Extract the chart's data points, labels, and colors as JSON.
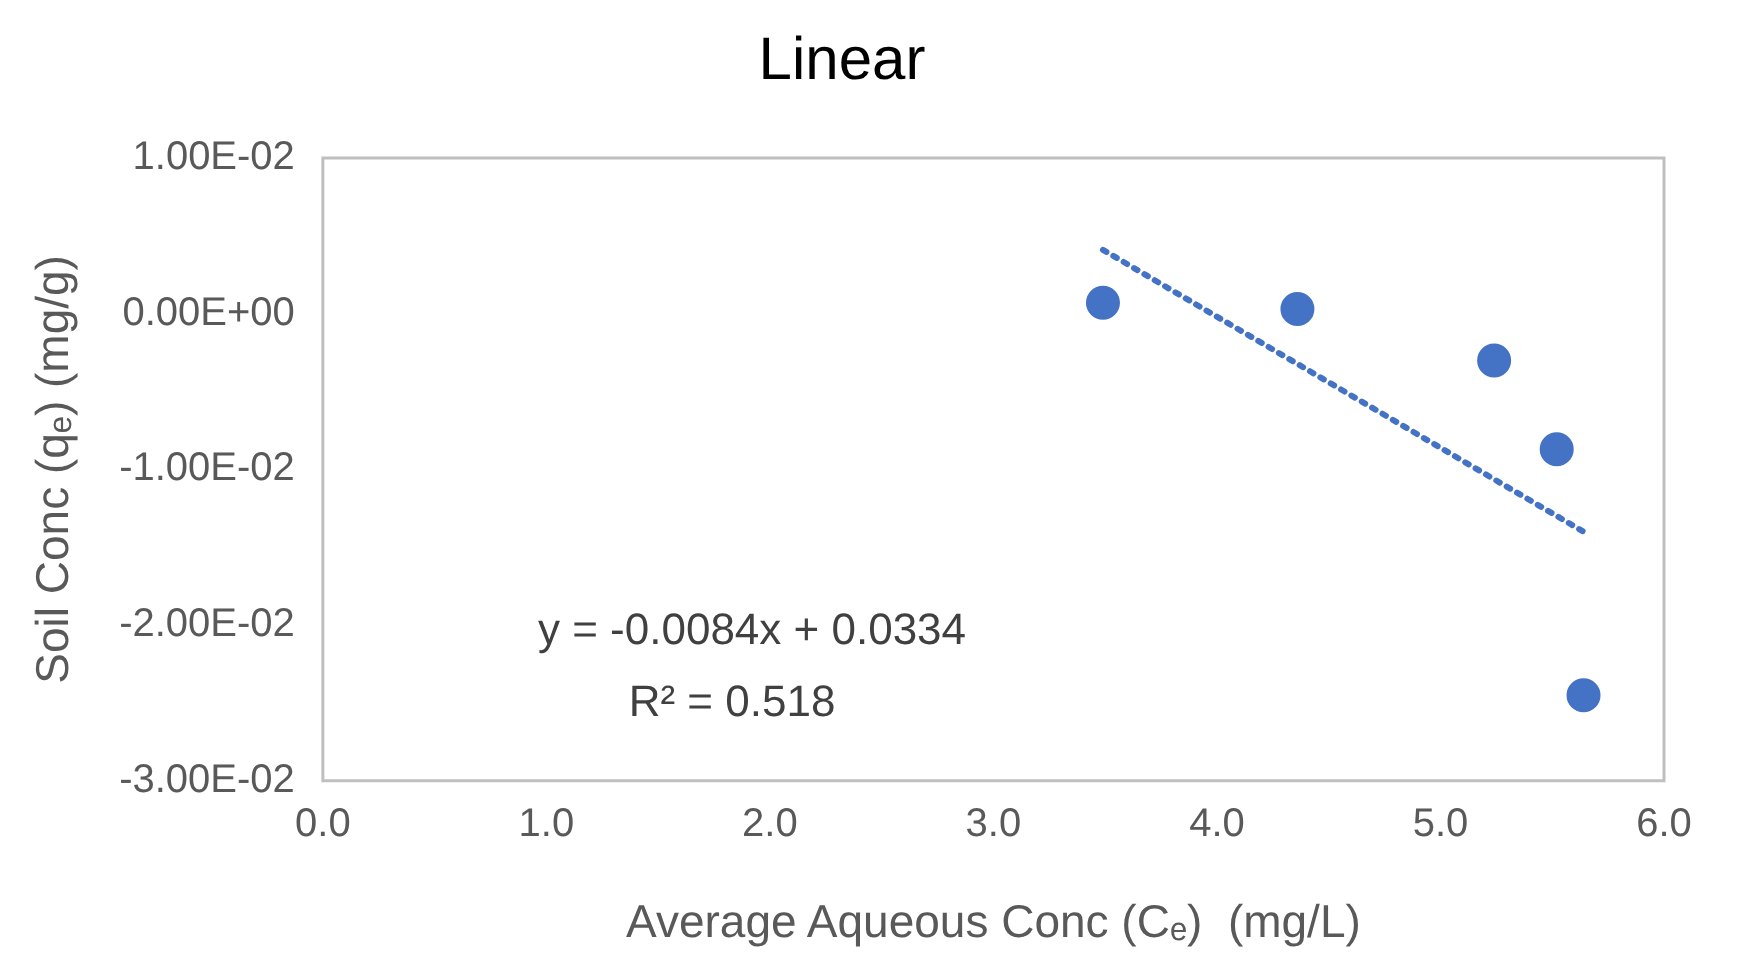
{
  "chart_data": {
    "type": "scatter",
    "title": "Linear",
    "xlabel": "Average Aqueous Conc (Cₑ)  (mg/L)",
    "ylabel": "Soil Conc (qₑ) (mg/g)",
    "series": [
      {
        "type": "scatter",
        "color": "#4472c4",
        "marker": "circle",
        "x": [
          3.49,
          4.36,
          5.24,
          5.52,
          5.64
        ],
        "values": [
          0.0007,
          0.0003,
          -0.003,
          -0.0087,
          -0.0245
        ]
      },
      {
        "type": "line",
        "color": "#4472c4",
        "line_style": "dotted",
        "marker": "none",
        "x": [
          3.49,
          5.64
        ],
        "values": [
          0.0041,
          -0.014
        ]
      }
    ],
    "xlim": [
      0,
      6
    ],
    "xticks": [
      {
        "value": 0,
        "label": "0.0"
      },
      {
        "value": 1,
        "label": "1.0"
      },
      {
        "value": 2,
        "label": "2.0"
      },
      {
        "value": 3,
        "label": "3.0"
      },
      {
        "value": 4,
        "label": "4.0"
      },
      {
        "value": 5,
        "label": "5.0"
      },
      {
        "value": 6,
        "label": "6.0"
      }
    ],
    "ylim": [
      -0.03,
      0.01
    ],
    "yticks": [
      {
        "value": 0.01,
        "label": "1.00E-02"
      },
      {
        "value": 0,
        "label": "0.00E+00"
      },
      {
        "value": -0.01,
        "label": "-1.00E-02"
      },
      {
        "value": -0.02,
        "label": "-2.00E-02"
      },
      {
        "value": -0.03,
        "label": "-3.00E-02"
      }
    ],
    "annotations": [
      "y = -0.0084x + 0.0334",
      "R² = 0.518"
    ],
    "grid": false,
    "legend": false
  }
}
